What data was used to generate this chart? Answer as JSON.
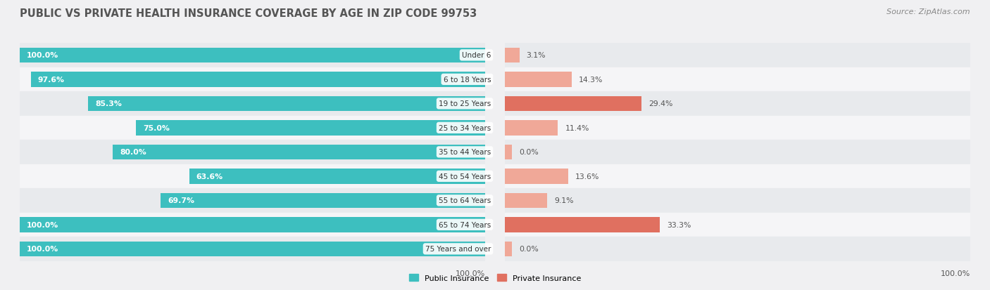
{
  "title": "PUBLIC VS PRIVATE HEALTH INSURANCE COVERAGE BY AGE IN ZIP CODE 99753",
  "source": "Source: ZipAtlas.com",
  "categories": [
    "Under 6",
    "6 to 18 Years",
    "19 to 25 Years",
    "25 to 34 Years",
    "35 to 44 Years",
    "45 to 54 Years",
    "55 to 64 Years",
    "65 to 74 Years",
    "75 Years and over"
  ],
  "public_values": [
    100.0,
    97.6,
    85.3,
    75.0,
    80.0,
    63.6,
    69.7,
    100.0,
    100.0
  ],
  "private_values": [
    3.1,
    14.3,
    29.4,
    11.4,
    0.0,
    13.6,
    9.1,
    33.3,
    0.0
  ],
  "public_color": "#3DBFBF",
  "private_color_strong": "#E07060",
  "private_color_light": "#F0A898",
  "row_colors": [
    "#e8eaed",
    "#f5f5f7"
  ],
  "bar_height": 0.62,
  "max_val": 100.0,
  "left_label": "100.0%",
  "right_label": "100.0%",
  "legend_public": "Public Insurance",
  "legend_private": "Private Insurance",
  "title_fontsize": 10.5,
  "label_fontsize": 8.0,
  "tick_fontsize": 8.0,
  "source_fontsize": 8.0,
  "value_label_fontsize": 7.8,
  "category_label_fontsize": 7.5
}
